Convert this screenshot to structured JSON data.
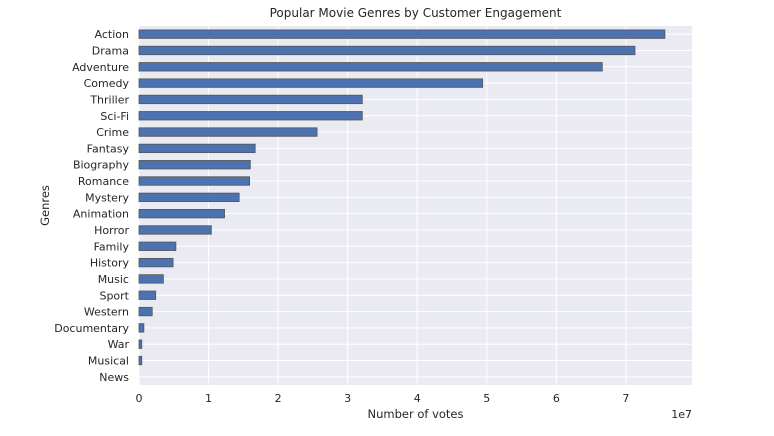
{
  "chart_data": {
    "type": "bar",
    "orientation": "horizontal",
    "title": "Popular Movie Genres by Customer Engagement",
    "xlabel": "Number of votes",
    "ylabel": "Genres",
    "x_scale_label": "1e7",
    "xlim": [
      0,
      7.95
    ],
    "xticks": [
      0,
      1,
      2,
      3,
      4,
      5,
      6,
      7
    ],
    "grid": true,
    "categories": [
      "Action",
      "Drama",
      "Adventure",
      "Comedy",
      "Thriller",
      "Sci-Fi",
      "Crime",
      "Fantasy",
      "Biography",
      "Romance",
      "Mystery",
      "Animation",
      "Horror",
      "Family",
      "History",
      "Music",
      "Sport",
      "Western",
      "Documentary",
      "War",
      "Musical",
      "News"
    ],
    "values": [
      7.56,
      7.13,
      6.66,
      4.94,
      3.21,
      3.21,
      2.56,
      1.67,
      1.6,
      1.59,
      1.44,
      1.23,
      1.04,
      0.53,
      0.49,
      0.35,
      0.24,
      0.19,
      0.07,
      0.04,
      0.04,
      0.0
    ],
    "value_unit": "x1e7 votes",
    "colors": {
      "bar": "#4c72b0",
      "bar_edge": "#555555",
      "background": "#eaeaf2",
      "grid": "#ffffff"
    }
  }
}
